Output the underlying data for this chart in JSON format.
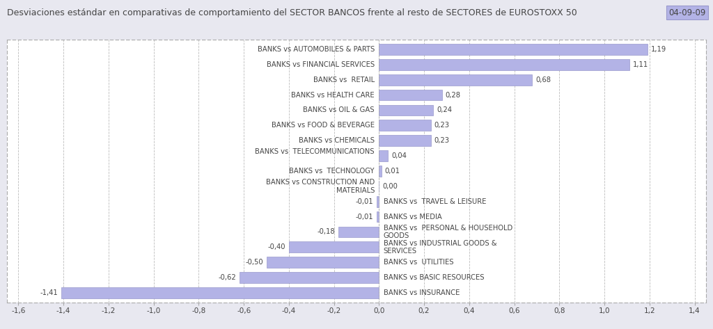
{
  "title": "Desviaciones estándar en comparativas de comportamiento del SECTOR BANCOS frente al resto de SECTORES de EUROSTOXX 50",
  "date_label": "04-09-09",
  "categories": [
    "BANKS vs AUTOMOBILES & PARTS",
    "BANKS vs FINANCIAL SERVICES",
    "BANKS vs  RETAIL",
    "BANKS vs HEALTH CARE",
    "BANKS vs OIL & GAS",
    "BANKS vs FOOD & BEVERAGE",
    "BANKS vs CHEMICALS",
    "BANKS vs  TELECOMMUNICATIONS\n",
    "BANKS vs  TECHNOLOGY",
    "BANKS vs CONSTRUCTION AND\nMATERIALS",
    "BANKS vs  TRAVEL & LEISURE",
    "BANKS vs MEDIA",
    "BANKS vs  PERSONAL & HOUSEHOLD\nGOODS",
    "BANKS vs INDUSTRIAL GOODS &\nSERVICES",
    "BANKS vs  UTILITIES",
    "BANKS vs BASIC RESOURCES",
    "BANKS vs INSURANCE"
  ],
  "values": [
    1.19,
    1.11,
    0.68,
    0.28,
    0.24,
    0.23,
    0.23,
    0.04,
    0.01,
    0.0,
    -0.01,
    -0.01,
    -0.18,
    -0.4,
    -0.5,
    -0.62,
    -1.41
  ],
  "value_labels": [
    "1,19",
    "1,11",
    "0,68",
    "0,28",
    "0,24",
    "0,23",
    "0,23",
    "0,04",
    "0,01",
    "0,00",
    "-0,01",
    "-0,01",
    "-0,18",
    "-0,40",
    "-0,50",
    "-0,62",
    "-1,41"
  ],
  "bar_color": "#b3b3e6",
  "bar_edge_color": "#9999cc",
  "background_color": "#e8e8f0",
  "plot_bg_color": "#ffffff",
  "grid_color": "#aaaaaa",
  "title_color": "#444444",
  "text_color": "#444444",
  "xlim": [
    -1.65,
    1.45
  ],
  "xticks": [
    -1.6,
    -1.4,
    -1.2,
    -1.0,
    -0.8,
    -0.6,
    -0.4,
    -0.2,
    0.0,
    0.2,
    0.4,
    0.6,
    0.8,
    1.0,
    1.2,
    1.4
  ],
  "xtick_labels": [
    "-1,6",
    "-1,4",
    "-1,2",
    "-1,0",
    "-0,8",
    "-0,6",
    "-0,4",
    "-0,2",
    "0,0",
    "0,2",
    "0,4",
    "0,6",
    "0,8",
    "1,0",
    "1,2",
    "1,4"
  ],
  "title_fontsize": 9.0,
  "label_fontsize": 7.2,
  "tick_fontsize": 7.5,
  "date_fontsize": 8.5
}
